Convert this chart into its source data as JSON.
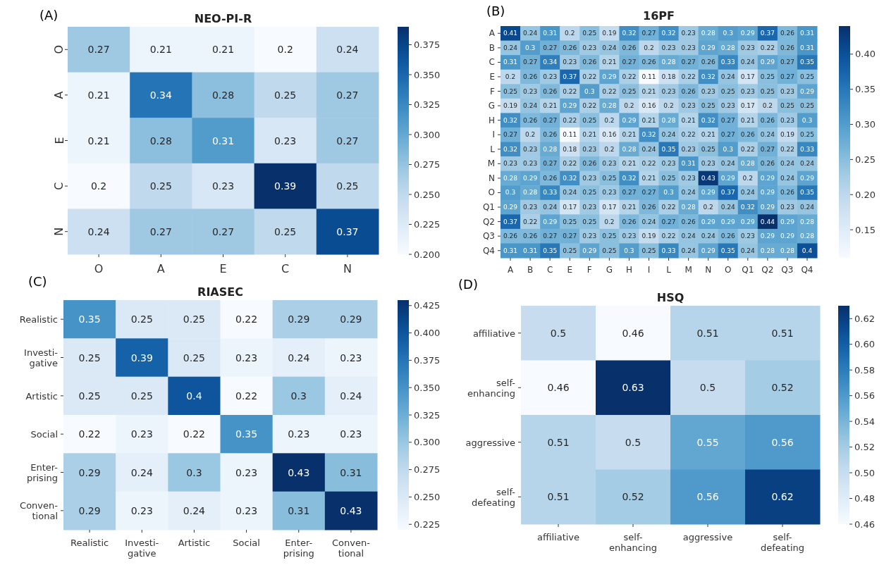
{
  "chart_data": [
    {
      "type": "heatmap",
      "title": "NEO-PI-R",
      "annotations": [
        "(A)"
      ],
      "categories": [
        "O",
        "A",
        "E",
        "C",
        "N"
      ],
      "y_categories": [
        "O",
        "A",
        "E",
        "C",
        "N"
      ],
      "cells": [
        [
          0.27,
          0.21,
          0.21,
          0.2,
          0.24
        ],
        [
          0.21,
          0.34,
          0.28,
          0.25,
          0.27
        ],
        [
          0.21,
          0.28,
          0.31,
          0.23,
          0.27
        ],
        [
          0.2,
          0.25,
          0.23,
          0.39,
          0.25
        ],
        [
          0.24,
          0.27,
          0.27,
          0.25,
          0.37
        ]
      ],
      "data_labels": true,
      "clim": [
        0.2,
        0.39
      ],
      "cticks": [
        {
          "value": 0.2,
          "label": "0.200"
        },
        {
          "value": 0.225,
          "label": "0.225"
        },
        {
          "value": 0.25,
          "label": "0.250"
        },
        {
          "value": 0.275,
          "label": "0.275"
        },
        {
          "value": 0.3,
          "label": "0.300"
        },
        {
          "value": 0.325,
          "label": "0.325"
        },
        {
          "value": 0.35,
          "label": "0.350"
        },
        {
          "value": 0.375,
          "label": "0.375"
        }
      ]
    },
    {
      "type": "heatmap",
      "title": "16PF",
      "annotations": [
        "(B)"
      ],
      "categories": [
        "A",
        "B",
        "C",
        "E",
        "F",
        "G",
        "H",
        "I",
        "L",
        "M",
        "N",
        "O",
        "Q1",
        "Q2",
        "Q3",
        "Q4"
      ],
      "y_categories": [
        "A",
        "B",
        "C",
        "E",
        "F",
        "G",
        "H",
        "I",
        "L",
        "M",
        "N",
        "O",
        "Q1",
        "Q2",
        "Q3",
        "Q4"
      ],
      "cells": [
        [
          0.41,
          0.24,
          0.31,
          0.2,
          0.25,
          0.19,
          0.32,
          0.27,
          0.32,
          0.23,
          0.28,
          0.3,
          0.29,
          0.37,
          0.26,
          0.31
        ],
        [
          0.24,
          0.3,
          0.27,
          0.26,
          0.23,
          0.24,
          0.26,
          0.2,
          0.23,
          0.23,
          0.29,
          0.28,
          0.23,
          0.22,
          0.26,
          0.31
        ],
        [
          0.31,
          0.27,
          0.34,
          0.23,
          0.26,
          0.21,
          0.27,
          0.26,
          0.28,
          0.27,
          0.26,
          0.33,
          0.24,
          0.29,
          0.27,
          0.35
        ],
        [
          0.2,
          0.26,
          0.23,
          0.37,
          0.22,
          0.29,
          0.22,
          0.11,
          0.18,
          0.22,
          0.32,
          0.24,
          0.17,
          0.25,
          0.27,
          0.25
        ],
        [
          0.25,
          0.23,
          0.26,
          0.22,
          0.3,
          0.22,
          0.25,
          0.21,
          0.23,
          0.26,
          0.23,
          0.25,
          0.23,
          0.25,
          0.23,
          0.29
        ],
        [
          0.19,
          0.24,
          0.21,
          0.29,
          0.22,
          0.28,
          0.2,
          0.16,
          0.2,
          0.23,
          0.25,
          0.23,
          0.17,
          0.2,
          0.25,
          0.25
        ],
        [
          0.32,
          0.26,
          0.27,
          0.22,
          0.25,
          0.2,
          0.29,
          0.21,
          0.28,
          0.21,
          0.32,
          0.27,
          0.21,
          0.26,
          0.23,
          0.3
        ],
        [
          0.27,
          0.2,
          0.26,
          0.11,
          0.21,
          0.16,
          0.21,
          0.32,
          0.24,
          0.22,
          0.21,
          0.27,
          0.26,
          0.24,
          0.19,
          0.25
        ],
        [
          0.32,
          0.23,
          0.28,
          0.18,
          0.23,
          0.2,
          0.28,
          0.24,
          0.35,
          0.23,
          0.25,
          0.3,
          0.22,
          0.27,
          0.22,
          0.33
        ],
        [
          0.23,
          0.23,
          0.27,
          0.22,
          0.26,
          0.23,
          0.21,
          0.22,
          0.23,
          0.31,
          0.23,
          0.24,
          0.28,
          0.26,
          0.24,
          0.24
        ],
        [
          0.28,
          0.29,
          0.26,
          0.32,
          0.23,
          0.25,
          0.32,
          0.21,
          0.25,
          0.23,
          0.43,
          0.29,
          0.2,
          0.29,
          0.24,
          0.29
        ],
        [
          0.3,
          0.28,
          0.33,
          0.24,
          0.25,
          0.23,
          0.27,
          0.27,
          0.3,
          0.24,
          0.29,
          0.37,
          0.24,
          0.29,
          0.26,
          0.35
        ],
        [
          0.29,
          0.23,
          0.24,
          0.17,
          0.23,
          0.17,
          0.21,
          0.26,
          0.22,
          0.28,
          0.2,
          0.24,
          0.32,
          0.29,
          0.23,
          0.24
        ],
        [
          0.37,
          0.22,
          0.29,
          0.25,
          0.25,
          0.2,
          0.26,
          0.24,
          0.27,
          0.26,
          0.29,
          0.29,
          0.29,
          0.44,
          0.29,
          0.28
        ],
        [
          0.26,
          0.26,
          0.27,
          0.27,
          0.23,
          0.25,
          0.23,
          0.19,
          0.22,
          0.24,
          0.24,
          0.26,
          0.23,
          0.29,
          0.29,
          0.28
        ],
        [
          0.31,
          0.31,
          0.35,
          0.25,
          0.29,
          0.25,
          0.3,
          0.25,
          0.33,
          0.24,
          0.29,
          0.35,
          0.24,
          0.28,
          0.28,
          0.4
        ]
      ],
      "data_labels": true,
      "clim": [
        0.11,
        0.44
      ],
      "cticks": [
        {
          "value": 0.15,
          "label": "0.15"
        },
        {
          "value": 0.2,
          "label": "0.20"
        },
        {
          "value": 0.25,
          "label": "0.25"
        },
        {
          "value": 0.3,
          "label": "0.30"
        },
        {
          "value": 0.35,
          "label": "0.35"
        },
        {
          "value": 0.4,
          "label": "0.40"
        }
      ]
    },
    {
      "type": "heatmap",
      "title": "RIASEC",
      "annotations": [
        "(C)"
      ],
      "categories": [
        "Realistic",
        "Investi-\ngative",
        "Artistic",
        "Social",
        "Enter-\nprising",
        "Conven-\ntional"
      ],
      "y_categories": [
        "Realistic",
        "Investi-\ngative",
        "Artistic",
        "Social",
        "Enter-\nprising",
        "Conven-\ntional"
      ],
      "cells": [
        [
          0.35,
          0.25,
          0.25,
          0.22,
          0.29,
          0.29
        ],
        [
          0.25,
          0.39,
          0.25,
          0.23,
          0.24,
          0.23
        ],
        [
          0.25,
          0.25,
          0.4,
          0.22,
          0.3,
          0.24
        ],
        [
          0.22,
          0.23,
          0.22,
          0.35,
          0.23,
          0.23
        ],
        [
          0.29,
          0.24,
          0.3,
          0.23,
          0.43,
          0.31
        ],
        [
          0.29,
          0.23,
          0.24,
          0.23,
          0.31,
          0.43
        ]
      ],
      "data_labels": true,
      "clim": [
        0.22,
        0.43
      ],
      "cticks": [
        {
          "value": 0.225,
          "label": "0.225"
        },
        {
          "value": 0.25,
          "label": "0.250"
        },
        {
          "value": 0.275,
          "label": "0.275"
        },
        {
          "value": 0.3,
          "label": "0.300"
        },
        {
          "value": 0.325,
          "label": "0.325"
        },
        {
          "value": 0.35,
          "label": "0.350"
        },
        {
          "value": 0.375,
          "label": "0.375"
        },
        {
          "value": 0.4,
          "label": "0.400"
        },
        {
          "value": 0.425,
          "label": "0.425"
        }
      ]
    },
    {
      "type": "heatmap",
      "title": "HSQ",
      "annotations": [
        "(D)"
      ],
      "categories": [
        "affiliative",
        "self-\nenhancing",
        "aggressive",
        "self-\ndefeating"
      ],
      "y_categories": [
        "affiliative",
        "self-\nenhancing",
        "aggressive",
        "self-\ndefeating"
      ],
      "cells": [
        [
          0.5,
          0.46,
          0.51,
          0.51
        ],
        [
          0.46,
          0.63,
          0.5,
          0.52
        ],
        [
          0.51,
          0.5,
          0.55,
          0.56
        ],
        [
          0.51,
          0.52,
          0.56,
          0.62
        ]
      ],
      "data_labels": true,
      "clim": [
        0.46,
        0.63
      ],
      "cticks": [
        {
          "value": 0.46,
          "label": "0.46"
        },
        {
          "value": 0.48,
          "label": "0.48"
        },
        {
          "value": 0.5,
          "label": "0.50"
        },
        {
          "value": 0.52,
          "label": "0.52"
        },
        {
          "value": 0.54,
          "label": "0.54"
        },
        {
          "value": 0.56,
          "label": "0.56"
        },
        {
          "value": 0.58,
          "label": "0.58"
        },
        {
          "value": 0.6,
          "label": "0.60"
        },
        {
          "value": 0.62,
          "label": "0.62"
        }
      ]
    }
  ]
}
